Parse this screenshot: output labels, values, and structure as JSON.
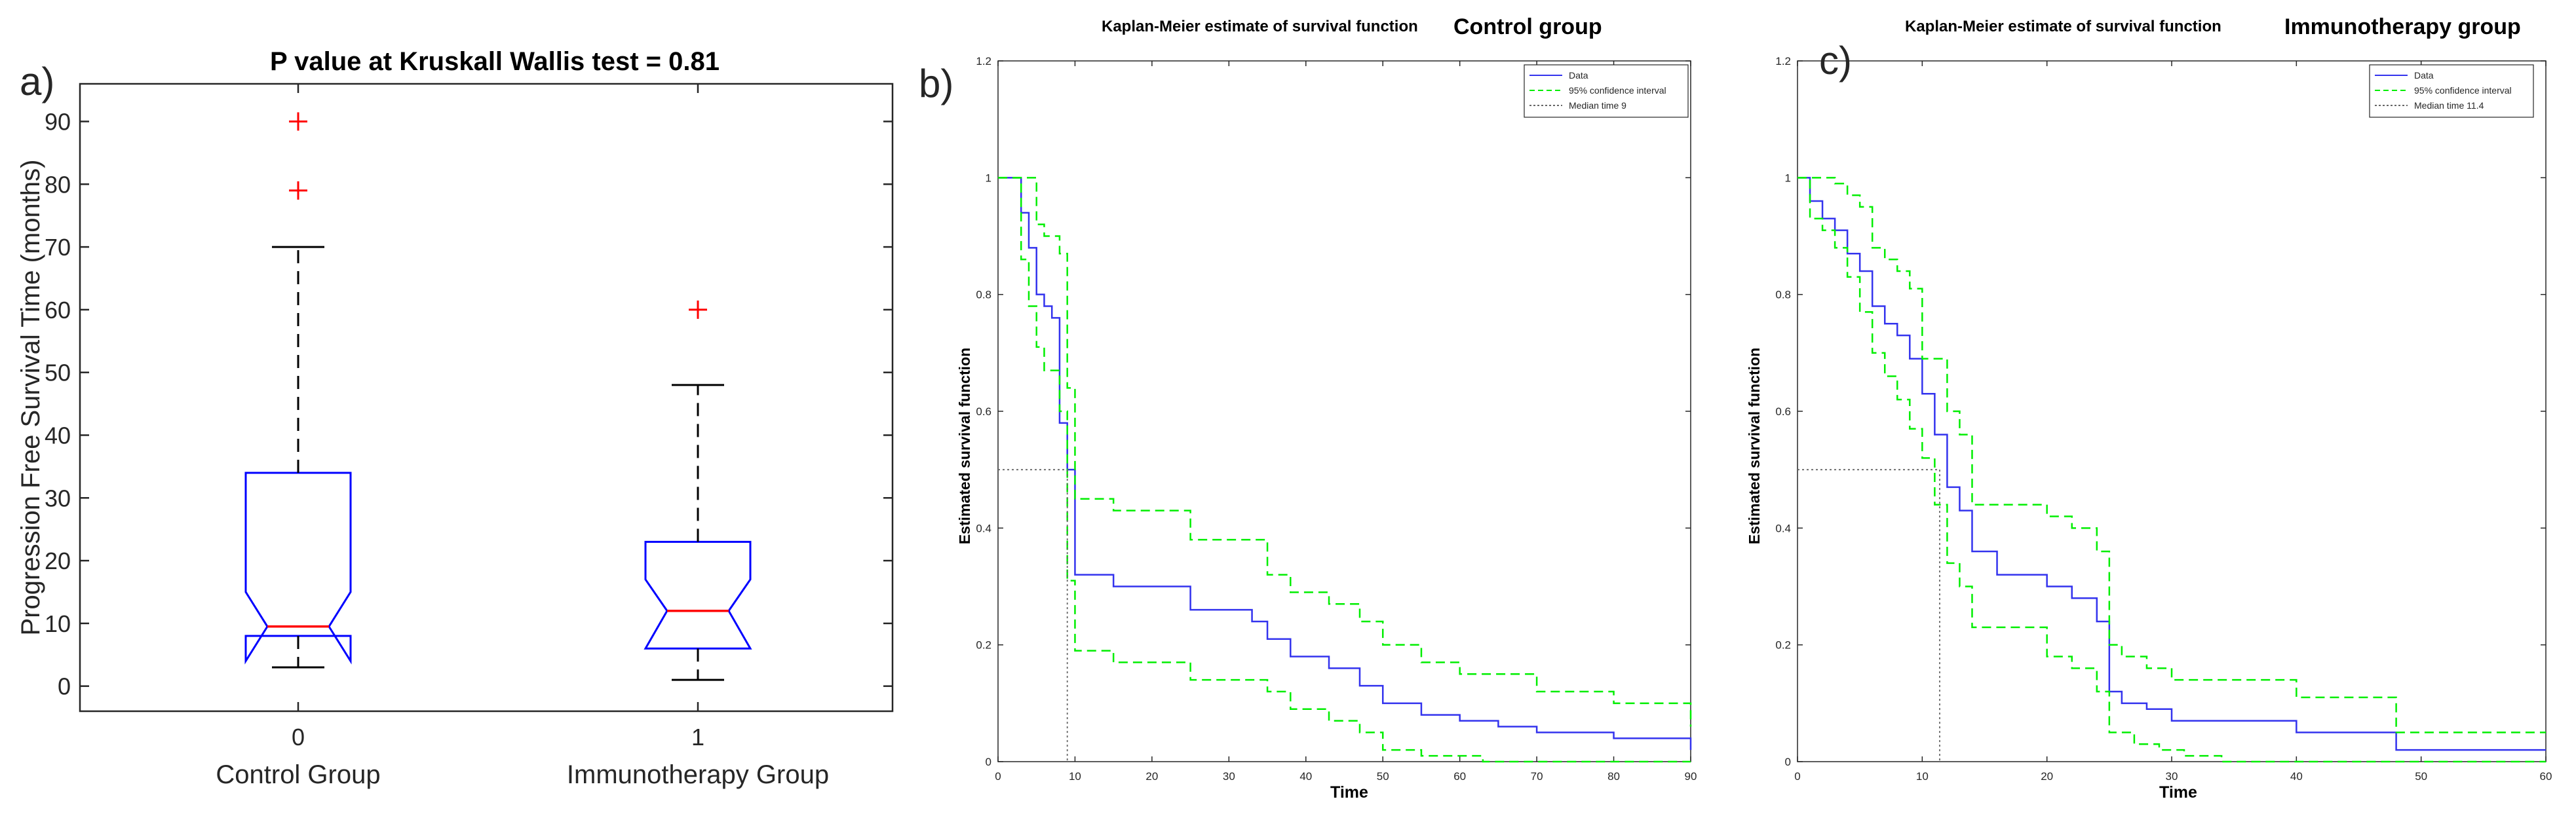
{
  "colors": {
    "box_blue": "#0000ff",
    "median_red": "#ff0000",
    "ci_green": "#00ee00",
    "km_blue": "#3333ee",
    "median_guide": "#666666",
    "text": "#262626"
  },
  "chart_data": [
    {
      "id": "a",
      "panel_label": "a)",
      "type": "box",
      "title": "P value at Kruskall Wallis test = 0.81",
      "ylabel": "Progression Free Survival Time (months)",
      "xlabel": "",
      "ylim": [
        -4,
        96
      ],
      "yticks": [
        0,
        10,
        20,
        30,
        40,
        50,
        60,
        70,
        80,
        90
      ],
      "groups": [
        {
          "tick": "0",
          "name": "Control Group",
          "whisker_low": 3,
          "q1": 8,
          "median": 9.5,
          "q3": 34,
          "whisker_high": 70,
          "notch_low": 4,
          "notch_high": 15,
          "outliers": [
            79,
            90
          ]
        },
        {
          "tick": "1",
          "name": "Immunotherapy Group",
          "whisker_low": 1,
          "q1": 6,
          "median": 12,
          "q3": 23,
          "whisker_high": 48,
          "notch_low": 6,
          "notch_high": 17,
          "outliers": [
            60
          ]
        }
      ]
    },
    {
      "id": "b",
      "panel_label": "b)",
      "type": "line",
      "title": "Kaplan-Meier estimate of survival function",
      "group_label": "Control group",
      "xlabel": "Time",
      "ylabel": "Estimated survival function",
      "xlim": [
        0,
        90
      ],
      "ylim": [
        0,
        1.2
      ],
      "xticks": [
        0,
        10,
        20,
        30,
        40,
        50,
        60,
        70,
        80,
        90
      ],
      "yticks": [
        0,
        0.2,
        0.4,
        0.6,
        0.8,
        1,
        1.2
      ],
      "legend": [
        "Data",
        "95% confidence interval",
        "Median time 9"
      ],
      "median_time": 9,
      "series": [
        {
          "name": "Data",
          "x": [
            0,
            3,
            4,
            5,
            6,
            7,
            8,
            9,
            10,
            15,
            25,
            33,
            35,
            38,
            43,
            47,
            50,
            55,
            60,
            65,
            70,
            80,
            90
          ],
          "y": [
            1,
            0.94,
            0.88,
            0.8,
            0.78,
            0.76,
            0.58,
            0.5,
            0.32,
            0.3,
            0.26,
            0.24,
            0.21,
            0.18,
            0.16,
            0.13,
            0.1,
            0.08,
            0.07,
            0.06,
            0.05,
            0.04,
            0.02
          ]
        },
        {
          "name": "95% CI upper",
          "x": [
            0,
            5,
            6,
            8,
            9,
            10,
            15,
            25,
            35,
            38,
            43,
            47,
            50,
            55,
            60,
            70,
            80,
            90
          ],
          "y": [
            1,
            0.92,
            0.9,
            0.87,
            0.64,
            0.45,
            0.43,
            0.38,
            0.32,
            0.29,
            0.27,
            0.24,
            0.2,
            0.17,
            0.15,
            0.12,
            0.1,
            0.06
          ]
        },
        {
          "name": "95% CI lower",
          "x": [
            0,
            3,
            4,
            5,
            6,
            8,
            9,
            10,
            15,
            25,
            35,
            38,
            43,
            47,
            50,
            55,
            63,
            90
          ],
          "y": [
            1,
            0.86,
            0.78,
            0.71,
            0.67,
            0.6,
            0.31,
            0.19,
            0.17,
            0.14,
            0.12,
            0.09,
            0.07,
            0.05,
            0.02,
            0.01,
            0,
            0
          ]
        }
      ]
    },
    {
      "id": "c",
      "panel_label": "c)",
      "type": "line",
      "title": "Kaplan-Meier estimate of survival function",
      "group_label": "Immunotherapy group",
      "xlabel": "Time",
      "ylabel": "Estimated survival function",
      "xlim": [
        0,
        60
      ],
      "ylim": [
        0,
        1.2
      ],
      "xticks": [
        0,
        10,
        20,
        30,
        40,
        50,
        60
      ],
      "yticks": [
        0,
        0.2,
        0.4,
        0.6,
        0.8,
        1,
        1.2
      ],
      "legend": [
        "Data",
        "95% confidence interval",
        "Median time 11.4"
      ],
      "median_time": 11.4,
      "series": [
        {
          "name": "Data",
          "x": [
            0,
            1,
            2,
            3,
            4,
            5,
            6,
            7,
            8,
            9,
            10,
            11,
            12,
            13,
            14,
            16,
            20,
            22,
            24,
            25,
            26,
            28,
            30,
            40,
            48,
            60
          ],
          "y": [
            1,
            0.96,
            0.93,
            0.91,
            0.87,
            0.84,
            0.78,
            0.75,
            0.73,
            0.69,
            0.63,
            0.56,
            0.47,
            0.43,
            0.36,
            0.32,
            0.3,
            0.28,
            0.24,
            0.12,
            0.1,
            0.09,
            0.07,
            0.05,
            0.02,
            0.02
          ]
        },
        {
          "name": "95% CI upper",
          "x": [
            0,
            3,
            4,
            5,
            6,
            7,
            8,
            9,
            10,
            12,
            13,
            14,
            20,
            22,
            24,
            25,
            26,
            28,
            30,
            40,
            48,
            60
          ],
          "y": [
            1,
            0.99,
            0.97,
            0.95,
            0.88,
            0.86,
            0.84,
            0.81,
            0.69,
            0.6,
            0.56,
            0.44,
            0.42,
            0.4,
            0.36,
            0.2,
            0.18,
            0.16,
            0.14,
            0.11,
            0.05,
            0.05
          ]
        },
        {
          "name": "95% CI lower",
          "x": [
            0,
            1,
            2,
            3,
            4,
            5,
            6,
            7,
            8,
            9,
            10,
            11,
            12,
            13,
            14,
            20,
            22,
            24,
            25,
            27,
            29,
            31,
            34,
            60
          ],
          "y": [
            1,
            0.93,
            0.91,
            0.88,
            0.83,
            0.77,
            0.7,
            0.66,
            0.62,
            0.57,
            0.52,
            0.44,
            0.34,
            0.3,
            0.23,
            0.18,
            0.16,
            0.12,
            0.05,
            0.03,
            0.02,
            0.01,
            0,
            0
          ]
        }
      ]
    }
  ]
}
